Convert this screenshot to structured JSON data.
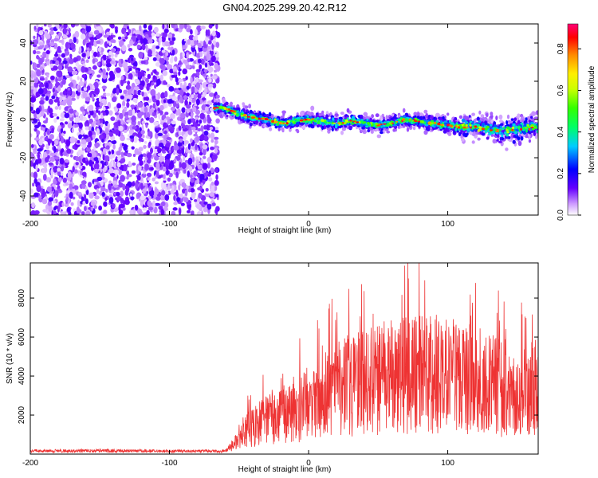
{
  "title": "GN04.2025.299.20.42.R12",
  "chart_data": [
    {
      "type": "heatmap",
      "name": "spectrogram",
      "xlabel": "Height of straight line (km)",
      "ylabel": "Frequency (Hz)",
      "xlim": [
        -200,
        165
      ],
      "ylim": [
        -50,
        50
      ],
      "xticks": [
        -200,
        -100,
        0,
        100
      ],
      "yticks": [
        -40,
        -20,
        0,
        20,
        40
      ],
      "noise_region_x": [
        -200,
        -65
      ],
      "signal_trace": {
        "x": [
          -68,
          -60,
          -50,
          -40,
          -30,
          -20,
          -10,
          0,
          10,
          20,
          30,
          40,
          50,
          60,
          70,
          80,
          90,
          100,
          110,
          120,
          130,
          140,
          150,
          160,
          165
        ],
        "freq": [
          6,
          6,
          3,
          1,
          0,
          -2,
          -1,
          0,
          -1,
          -2,
          -1,
          -2,
          -3,
          -2,
          0,
          -1,
          -2,
          -3,
          -4,
          -4,
          -5,
          -6,
          -5,
          -4,
          -4
        ]
      },
      "colorbar": {
        "label": "Normalized spectral amplitude",
        "range": [
          0,
          0.92
        ],
        "ticks": [
          0.0,
          0.2,
          0.4,
          0.6,
          0.8
        ]
      }
    },
    {
      "type": "line",
      "name": "snr",
      "xlabel": "Height of straight line (km)",
      "ylabel": "SNR (10 * v/v)",
      "xlim": [
        -200,
        165
      ],
      "ylim": [
        0,
        9800
      ],
      "xticks": [
        -200,
        -100,
        0,
        100
      ],
      "yticks": [
        2000,
        4000,
        6000,
        8000
      ],
      "color": "#ee3333",
      "series": [
        {
          "name": "SNR",
          "x": [
            -200,
            -150,
            -100,
            -60,
            -52,
            -45,
            -35,
            -20,
            -10,
            0,
            10,
            20,
            30,
            40,
            50,
            60,
            70,
            80,
            90,
            100,
            110,
            120,
            130,
            140,
            150,
            160,
            165
          ],
          "values": [
            150,
            180,
            150,
            150,
            600,
            1200,
            1600,
            2000,
            2300,
            2600,
            3000,
            3300,
            3500,
            3700,
            3900,
            4000,
            4100,
            4150,
            4150,
            4100,
            4000,
            3900,
            3700,
            3400,
            3200,
            3300,
            3500
          ]
        }
      ]
    }
  ]
}
